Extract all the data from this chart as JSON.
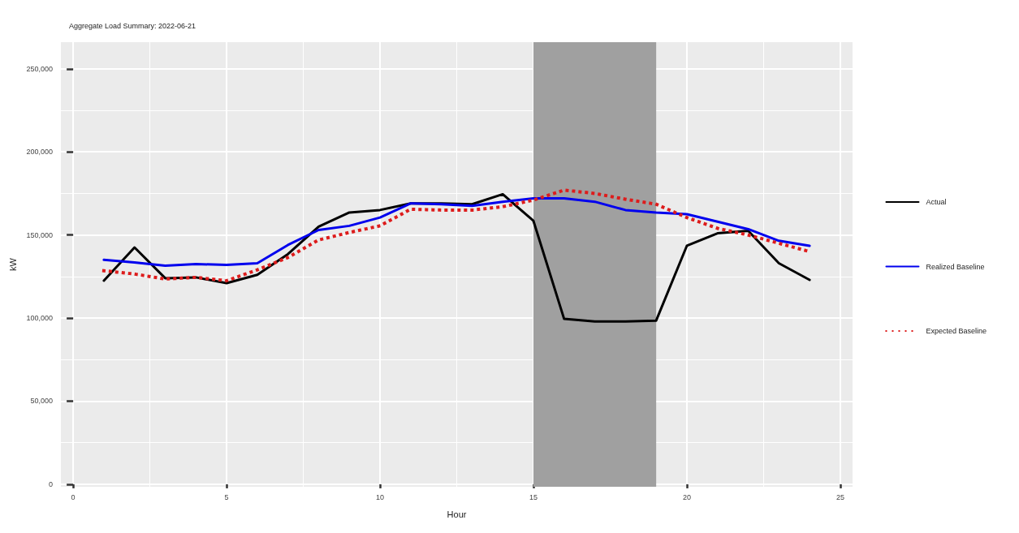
{
  "chart_data": {
    "type": "line",
    "title": "Aggregate Load Summary: 2022-06-21",
    "xlabel": "Hour",
    "ylabel": "kW",
    "x": [
      1,
      2,
      3,
      4,
      5,
      6,
      7,
      8,
      9,
      10,
      11,
      12,
      13,
      14,
      15,
      16,
      17,
      18,
      19,
      20,
      21,
      22,
      23,
      24
    ],
    "series": [
      {
        "name": "Actual",
        "color": "#000000",
        "line_style": "solid",
        "values": [
          122500,
          142500,
          124000,
          124500,
          121000,
          126000,
          138500,
          155000,
          163500,
          165000,
          169000,
          169000,
          168500,
          174500,
          158500,
          99500,
          98000,
          98000,
          98500,
          143500,
          151000,
          152500,
          133000,
          123000
        ]
      },
      {
        "name": "Realized Baseline",
        "color": "#0000ee",
        "line_style": "solid",
        "values": [
          135000,
          133500,
          131500,
          132500,
          132000,
          133000,
          144000,
          153000,
          155500,
          160500,
          169000,
          168500,
          167500,
          170000,
          172000,
          172000,
          170000,
          165000,
          163500,
          162500,
          158000,
          153500,
          146500,
          143500
        ]
      },
      {
        "name": "Expected Baseline",
        "color": "#dd1c1c",
        "line_style": "dotted",
        "values": [
          128500,
          126500,
          123500,
          124500,
          122500,
          129000,
          136500,
          147000,
          151500,
          155500,
          165500,
          165000,
          165000,
          167000,
          171000,
          177000,
          175000,
          171500,
          168500,
          160500,
          154000,
          150000,
          145000,
          140000
        ]
      }
    ],
    "bands": [
      {
        "axis": "x",
        "from": 15,
        "to": 19,
        "color": "#a0a0a0"
      }
    ],
    "xlim": [
      -0.4,
      25.4
    ],
    "xticks": [
      0,
      5,
      10,
      15,
      20,
      25
    ],
    "ylim": [
      -1500,
      266000
    ],
    "yticks": [
      {
        "value": 0,
        "label": "0"
      },
      {
        "value": 50000,
        "label": "50,000"
      },
      {
        "value": 100000,
        "label": "100,000"
      },
      {
        "value": 150000,
        "label": "150,000"
      },
      {
        "value": 200000,
        "label": "200,000"
      },
      {
        "value": 250000,
        "label": "250,000"
      }
    ],
    "grid": true,
    "legend": "right",
    "marker": "none"
  }
}
